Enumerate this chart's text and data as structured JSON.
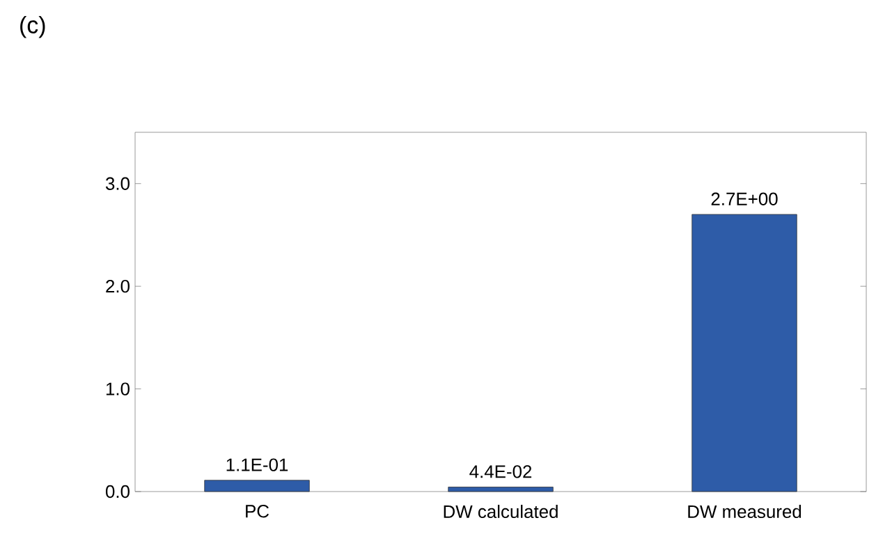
{
  "chart_data": {
    "type": "bar",
    "title": "(c)",
    "categories": [
      "PC",
      "DW calculated",
      "DW measured"
    ],
    "values": [
      0.11,
      0.044,
      2.7
    ],
    "value_labels": [
      "1.1E-01",
      "4.4E-02",
      "2.7E+00"
    ],
    "color": "#2e5ca8",
    "ylim": [
      0,
      3.5
    ],
    "yticks": [
      {
        "value": 0,
        "label": "0.0"
      },
      {
        "value": 1,
        "label": "1.0"
      },
      {
        "value": 2,
        "label": "2.0"
      },
      {
        "value": 3,
        "label": "3.0"
      }
    ],
    "grid": false
  }
}
